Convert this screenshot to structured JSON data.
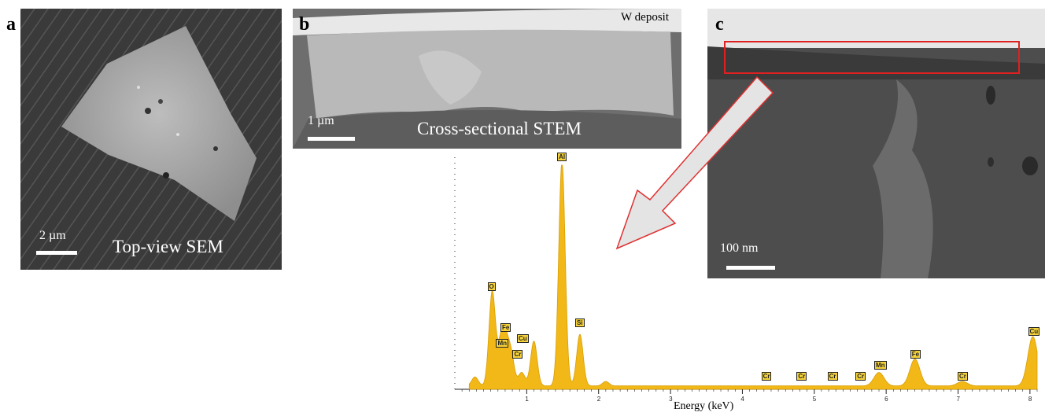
{
  "panels": {
    "a": {
      "letter": "a",
      "scale": "2 µm",
      "caption": "Top-view SEM"
    },
    "b": {
      "letter": "b",
      "scale": "1 µm",
      "caption": "Cross-sectional STEM",
      "deposit": "W deposit"
    },
    "c": {
      "letter": "c",
      "scale": "100 nm"
    }
  },
  "chart_data": {
    "type": "area",
    "xlabel": "Energy (keV)",
    "xlim": [
      0,
      8.1
    ],
    "x_ticks": [
      "1",
      "2",
      "3",
      "4",
      "5",
      "6",
      "7",
      "8"
    ],
    "peak_labels": [
      {
        "label": "O",
        "energy": 0.52,
        "height": 0.42
      },
      {
        "label": "Fe",
        "energy": 0.7,
        "height": 0.24
      },
      {
        "label": "Mn",
        "energy": 0.64,
        "height": 0.17
      },
      {
        "label": "Cu",
        "energy": 0.93,
        "height": 0.19
      },
      {
        "label": "Cr",
        "energy": 0.87,
        "height": 0.12
      },
      {
        "label": "Al",
        "energy": 1.49,
        "height": 1.0
      },
      {
        "label": "Si",
        "energy": 1.74,
        "height": 0.26
      },
      {
        "label": "Cr",
        "energy": 4.33,
        "height": 0.02
      },
      {
        "label": "Cr",
        "energy": 4.82,
        "height": 0.02
      },
      {
        "label": "Cr",
        "energy": 5.25,
        "height": 0.02
      },
      {
        "label": "Cr",
        "energy": 5.64,
        "height": 0.02
      },
      {
        "label": "Mn",
        "energy": 5.9,
        "height": 0.07
      },
      {
        "label": "Fe",
        "energy": 6.4,
        "height": 0.12
      },
      {
        "label": "Cr",
        "energy": 7.06,
        "height": 0.02
      },
      {
        "label": "Cu",
        "energy": 8.04,
        "height": 0.22
      }
    ],
    "spectrum": [
      {
        "energy": 0.28,
        "height": 0.04
      },
      {
        "energy": 0.52,
        "height": 0.42
      },
      {
        "energy": 0.64,
        "height": 0.16
      },
      {
        "energy": 0.7,
        "height": 0.17
      },
      {
        "energy": 0.78,
        "height": 0.14
      },
      {
        "energy": 0.93,
        "height": 0.06
      },
      {
        "energy": 1.1,
        "height": 0.2
      },
      {
        "energy": 1.49,
        "height": 1.0
      },
      {
        "energy": 1.74,
        "height": 0.23
      },
      {
        "energy": 2.1,
        "height": 0.02
      },
      {
        "energy": 5.9,
        "height": 0.06
      },
      {
        "energy": 6.4,
        "height": 0.12
      },
      {
        "energy": 7.06,
        "height": 0.02
      },
      {
        "energy": 8.04,
        "height": 0.22
      }
    ],
    "color": "#f2b817"
  }
}
